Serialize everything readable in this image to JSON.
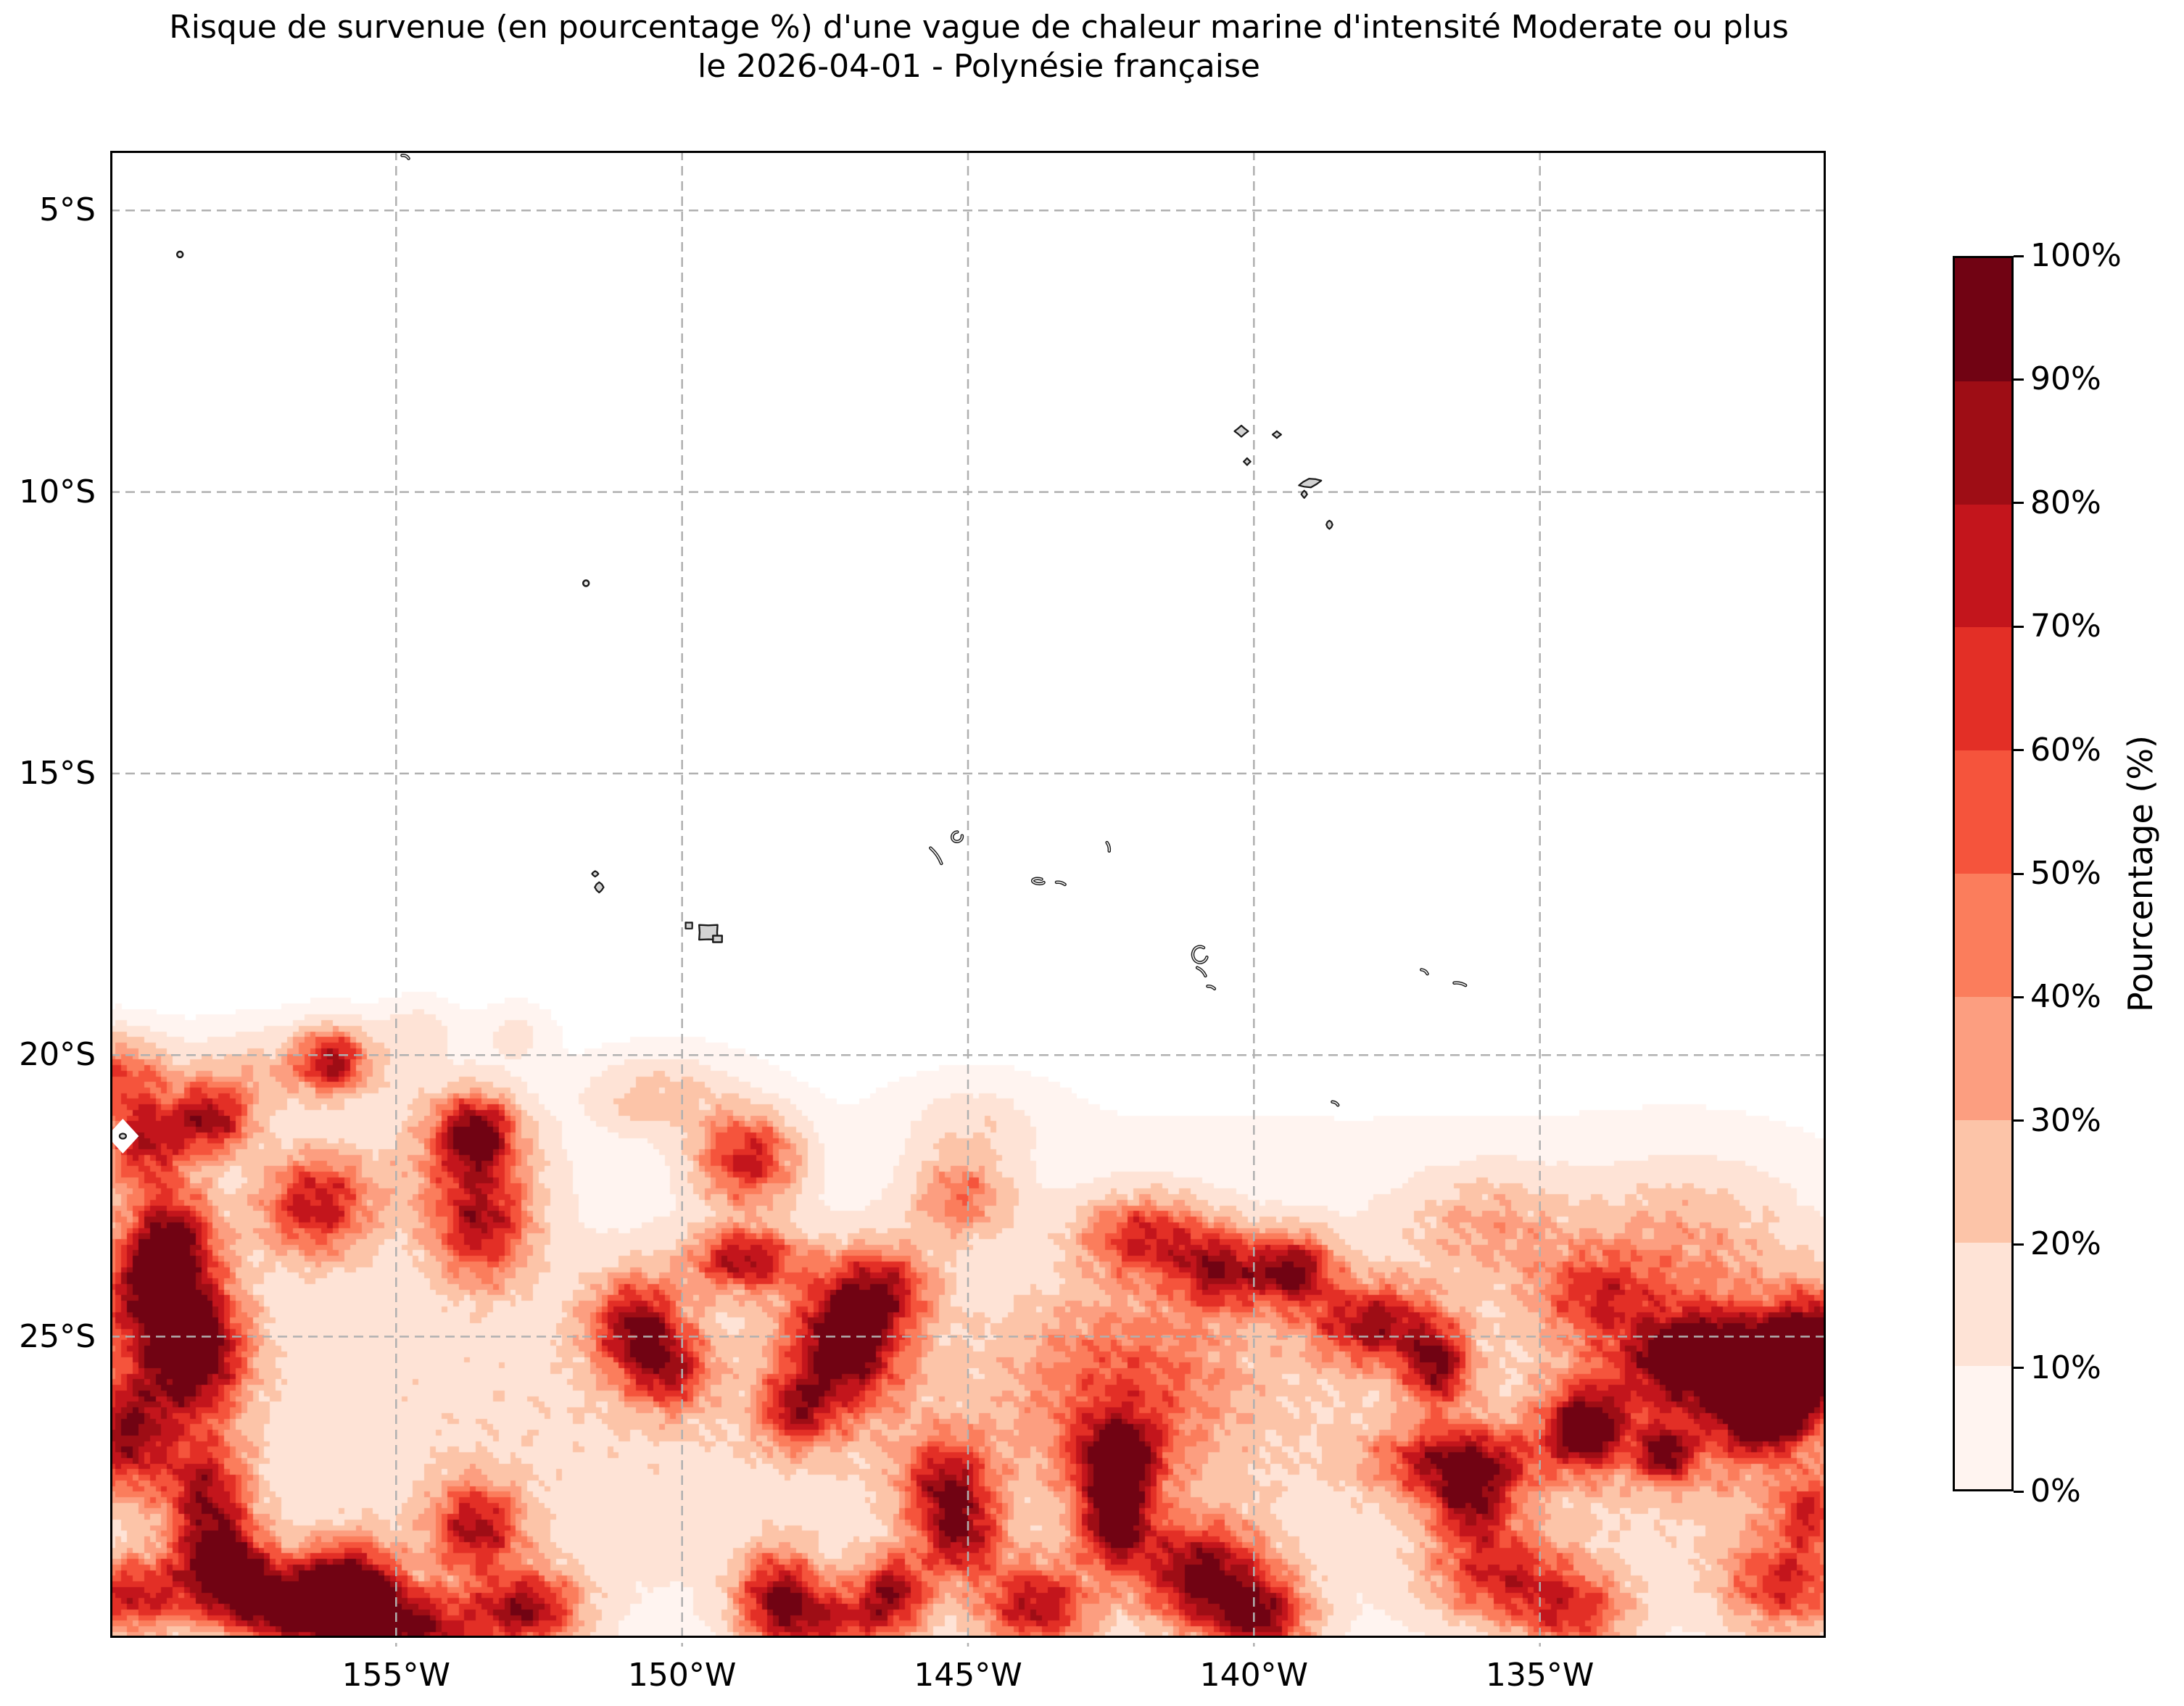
{
  "chart_data": {
    "type": "filled_contour_map",
    "title": "Risque de survenue (en pourcentage %) d'une vague de chaleur marine d'intensité Moderate ou plus",
    "subtitle": "le 2026-04-01 - Polynésie française",
    "region": "Polynésie française",
    "date": "2026-04-01",
    "extent": {
      "lon_west_deg_W": 160.0,
      "lon_east_deg_W": 130.0,
      "lat_north_deg_S": 3.94,
      "lat_south_deg_S": 30.35
    },
    "grid": {
      "on": true,
      "style": "dashed",
      "color": "#b0b0b0"
    },
    "xlabel": "",
    "ylabel": "",
    "xticks": [
      {
        "label": "155°W",
        "lonW": 155
      },
      {
        "label": "150°W",
        "lonW": 150
      },
      {
        "label": "145°W",
        "lonW": 145
      },
      {
        "label": "140°W",
        "lonW": 140
      },
      {
        "label": "135°W",
        "lonW": 135
      }
    ],
    "yticks": [
      {
        "label": "5°S",
        "latS": 5
      },
      {
        "label": "10°S",
        "latS": 10
      },
      {
        "label": "15°S",
        "latS": 15
      },
      {
        "label": "20°S",
        "latS": 20
      },
      {
        "label": "25°S",
        "latS": 25
      }
    ],
    "levels_percent": [
      0,
      10,
      20,
      30,
      40,
      50,
      60,
      70,
      80,
      90,
      100
    ],
    "palette": [
      "#fff4f0",
      "#fee3d6",
      "#fcc4a8",
      "#fc9e80",
      "#fb7d5c",
      "#f5543c",
      "#e32f26",
      "#c3151c",
      "#9e0d15",
      "#710313"
    ],
    "colorbar": {
      "label": "Pourcentage (%)",
      "tick_labels": [
        "0%",
        "10%",
        "20%",
        "30%",
        "40%",
        "50%",
        "60%",
        "70%",
        "80%",
        "90%",
        "100%"
      ],
      "position": "right"
    },
    "field_bumps_lonW_latS_sigLon_sigLat_amp": [
      [
        159.9,
        20.4,
        0.6,
        0.5,
        48
      ],
      [
        159.4,
        21.6,
        0.55,
        0.6,
        70
      ],
      [
        158.2,
        21.2,
        0.5,
        0.45,
        78
      ],
      [
        156.1,
        20.15,
        0.4,
        0.4,
        62
      ],
      [
        156.8,
        20.3,
        1.3,
        0.5,
        26
      ],
      [
        156.4,
        22.7,
        0.7,
        0.65,
        70
      ],
      [
        158.9,
        23.3,
        0.55,
        0.65,
        68
      ],
      [
        159.3,
        24.3,
        0.7,
        0.8,
        72
      ],
      [
        158.5,
        25.35,
        0.6,
        0.8,
        96
      ],
      [
        159.7,
        26.8,
        0.6,
        0.8,
        78
      ],
      [
        158.3,
        27.9,
        0.5,
        0.7,
        70
      ],
      [
        158.0,
        29.2,
        0.55,
        0.55,
        92
      ],
      [
        159.6,
        29.7,
        0.7,
        0.5,
        68
      ],
      [
        156.9,
        29.9,
        0.8,
        0.5,
        90
      ],
      [
        155.8,
        29.55,
        0.6,
        0.55,
        95
      ],
      [
        154.8,
        30.3,
        0.9,
        0.5,
        85
      ],
      [
        153.6,
        28.5,
        0.55,
        0.55,
        70
      ],
      [
        152.7,
        29.95,
        0.65,
        0.5,
        76
      ],
      [
        153.6,
        21.45,
        0.45,
        0.45,
        74
      ],
      [
        153.8,
        21.8,
        0.9,
        0.8,
        34
      ],
      [
        153.5,
        23.1,
        0.6,
        0.7,
        66
      ],
      [
        150.8,
        24.9,
        0.55,
        0.6,
        76
      ],
      [
        150.2,
        25.7,
        0.5,
        0.5,
        55
      ],
      [
        148.85,
        21.9,
        0.6,
        0.55,
        70
      ],
      [
        148.9,
        23.7,
        0.65,
        0.4,
        72
      ],
      [
        147.15,
        25.2,
        0.7,
        0.8,
        93
      ],
      [
        146.5,
        24.2,
        0.6,
        0.5,
        55
      ],
      [
        148.0,
        26.4,
        0.45,
        0.45,
        58
      ],
      [
        148.3,
        29.7,
        0.5,
        0.55,
        74
      ],
      [
        146.3,
        29.6,
        0.45,
        0.45,
        68
      ],
      [
        147.3,
        30.2,
        0.8,
        0.45,
        58
      ],
      [
        145.1,
        22.6,
        0.6,
        0.5,
        40
      ],
      [
        144.9,
        21.3,
        0.8,
        0.5,
        15
      ],
      [
        149.9,
        20.8,
        0.7,
        0.5,
        16
      ],
      [
        150.9,
        20.8,
        0.6,
        0.45,
        16
      ],
      [
        154.6,
        19.6,
        0.45,
        0.35,
        13
      ],
      [
        152.9,
        19.7,
        0.4,
        0.35,
        12
      ],
      [
        145.35,
        27.7,
        0.55,
        0.6,
        68
      ],
      [
        145.1,
        28.7,
        0.5,
        0.5,
        60
      ],
      [
        143.8,
        29.9,
        0.7,
        0.55,
        72
      ],
      [
        142.4,
        27.3,
        0.55,
        0.55,
        84
      ],
      [
        142.4,
        28.5,
        0.45,
        0.5,
        80
      ],
      [
        140.9,
        29.35,
        0.75,
        0.65,
        88
      ],
      [
        139.85,
        30.1,
        0.6,
        0.5,
        72
      ],
      [
        142.2,
        25.9,
        1.3,
        1.1,
        38
      ],
      [
        141.9,
        23.3,
        0.75,
        0.5,
        60
      ],
      [
        140.6,
        23.9,
        0.55,
        0.5,
        68
      ],
      [
        139.3,
        23.9,
        0.5,
        0.45,
        80
      ],
      [
        137.9,
        24.85,
        0.75,
        0.5,
        72
      ],
      [
        136.8,
        25.6,
        0.4,
        0.5,
        74
      ],
      [
        136.4,
        27.3,
        0.95,
        0.45,
        76
      ],
      [
        136.2,
        28.1,
        0.5,
        0.45,
        60
      ],
      [
        134.2,
        26.7,
        0.5,
        0.5,
        84
      ],
      [
        134.0,
        24.3,
        0.75,
        0.55,
        45
      ],
      [
        135.9,
        23.1,
        1.0,
        0.7,
        25
      ],
      [
        135.7,
        29.3,
        0.85,
        0.6,
        58
      ],
      [
        134.4,
        30.0,
        0.7,
        0.5,
        55
      ],
      [
        132.0,
        25.4,
        0.95,
        0.5,
        83
      ],
      [
        130.6,
        25.9,
        0.55,
        0.5,
        78
      ],
      [
        131.1,
        26.45,
        0.45,
        0.45,
        72
      ],
      [
        132.8,
        27.2,
        0.3,
        0.3,
        68
      ],
      [
        131.8,
        26.0,
        1.5,
        1.1,
        48
      ],
      [
        130.2,
        24.9,
        0.5,
        0.5,
        60
      ],
      [
        132.5,
        23.3,
        1.3,
        0.9,
        22
      ],
      [
        130.7,
        29.5,
        0.75,
        0.6,
        60
      ],
      [
        130.3,
        28.2,
        0.4,
        0.45,
        50
      ],
      [
        155.5,
        26.5,
        4.5,
        2.8,
        15
      ],
      [
        146.5,
        26.5,
        4.5,
        2.8,
        14
      ],
      [
        138.0,
        26.5,
        4.5,
        2.8,
        15
      ],
      [
        131.5,
        26.5,
        2.5,
        2.5,
        15
      ]
    ],
    "islands_lonW_latS_w_h_rot_kind": [
      [
        154.84,
        4.05,
        8,
        10,
        25,
        "dash"
      ],
      [
        158.78,
        5.78,
        6,
        6,
        0,
        "dot"
      ],
      [
        151.68,
        11.62,
        6,
        6,
        0,
        "dot"
      ],
      [
        140.22,
        8.92,
        16,
        13,
        0,
        "blob"
      ],
      [
        139.6,
        8.98,
        10,
        8,
        0,
        "blob"
      ],
      [
        140.12,
        9.46,
        8,
        8,
        0,
        "blob"
      ],
      [
        139.02,
        9.84,
        28,
        11,
        -12,
        "blob"
      ],
      [
        139.12,
        10.04,
        7,
        9,
        0,
        "blob"
      ],
      [
        138.68,
        10.58,
        8,
        11,
        0,
        "blob"
      ],
      [
        151.52,
        16.78,
        8,
        7,
        0,
        "blob"
      ],
      [
        151.45,
        17.02,
        11,
        13,
        0,
        "blob"
      ],
      [
        149.88,
        17.7,
        11,
        10,
        0,
        "blob"
      ],
      [
        149.54,
        17.82,
        30,
        24,
        0,
        "tahiti"
      ],
      [
        145.1,
        16.02,
        14,
        13,
        -30,
        "arc"
      ],
      [
        145.56,
        16.46,
        26,
        8,
        55,
        "dash"
      ],
      [
        142.55,
        16.3,
        12,
        6,
        75,
        "dash"
      ],
      [
        143.62,
        16.9,
        16,
        7,
        5,
        "arc"
      ],
      [
        143.38,
        16.95,
        12,
        6,
        15,
        "dash"
      ],
      [
        140.76,
        18.14,
        20,
        22,
        0,
        "arc"
      ],
      [
        140.92,
        18.52,
        16,
        8,
        45,
        "dash"
      ],
      [
        140.75,
        18.8,
        10,
        6,
        20,
        "dash"
      ],
      [
        138.58,
        20.86,
        9,
        6,
        30,
        "dash"
      ],
      [
        137.02,
        18.52,
        10,
        7,
        35,
        "dash"
      ],
      [
        136.4,
        18.74,
        16,
        7,
        12,
        "dash"
      ],
      [
        159.78,
        21.44,
        9,
        7,
        0,
        "dot-diamond"
      ]
    ],
    "land_color": "#d3d3d3",
    "coast_color": "#1a1a1a",
    "background_color": "#ffffff"
  }
}
